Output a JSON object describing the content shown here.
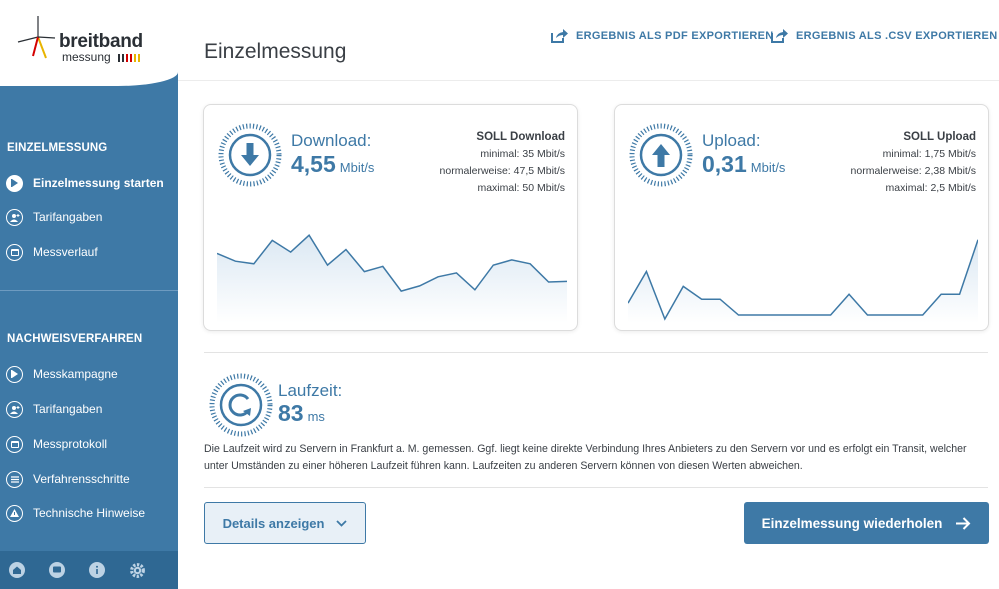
{
  "logo": {
    "word1": "breitband",
    "word2": "messung"
  },
  "sidebar": {
    "section1_title": "EINZELMESSUNG",
    "section1_items": [
      {
        "label": "Einzelmessung starten",
        "icon": "play-icon",
        "active": true
      },
      {
        "label": "Tarifangaben",
        "icon": "user-plus-icon",
        "active": false
      },
      {
        "label": "Messverlauf",
        "icon": "calendar-icon",
        "active": false
      }
    ],
    "section2_title": "NACHWEISVERFAHREN",
    "section2_items": [
      {
        "label": "Messkampagne",
        "icon": "play-icon"
      },
      {
        "label": "Tarifangaben",
        "icon": "user-plus-icon"
      },
      {
        "label": "Messprotokoll",
        "icon": "calendar-icon"
      },
      {
        "label": "Verfahrensschritte",
        "icon": "list-icon"
      },
      {
        "label": "Technische Hinweise",
        "icon": "warning-icon"
      }
    ],
    "bottom_icons": [
      "home-icon",
      "chat-icon",
      "info-icon",
      "gear-icon"
    ]
  },
  "header": {
    "title": "Einzelmessung",
    "export_pdf": "ERGEBNIS ALS PDF EXPORTIEREN",
    "export_csv": "ERGEBNIS ALS .CSV EXPORTIEREN"
  },
  "download": {
    "label": "Download:",
    "value": "4,55",
    "unit": "Mbit/s",
    "soll_title": "SOLL Download",
    "soll_min": "minimal: 35 Mbit/s",
    "soll_normal": "normalerweise: 47,5 Mbit/s",
    "soll_max": "maximal: 50 Mbit/s",
    "series": [
      5.2,
      4.6,
      4.4,
      6.2,
      5.3,
      6.6,
      4.3,
      5.5,
      3.8,
      4.2,
      2.3,
      2.7,
      3.4,
      3.7,
      2.4,
      4.3,
      4.7,
      4.4,
      3.0,
      3.05
    ]
  },
  "upload": {
    "label": "Upload:",
    "value": "0,31",
    "unit": "Mbit/s",
    "soll_title": "SOLL Upload",
    "soll_min": "minimal: 1,75 Mbit/s",
    "soll_normal": "normalerweise: 2,38 Mbit/s",
    "soll_max": "maximal: 2,5 Mbit/s",
    "series": [
      0.18,
      0.5,
      0.02,
      0.35,
      0.22,
      0.22,
      0.06,
      0.06,
      0.06,
      0.06,
      0.06,
      0.06,
      0.27,
      0.06,
      0.06,
      0.06,
      0.06,
      0.27,
      0.27,
      0.82
    ]
  },
  "latency": {
    "label": "Laufzeit:",
    "value": "83",
    "unit": "ms",
    "description": "Die Laufzeit wird zu Servern in Frankfurt a. M. gemessen. Ggf. liegt keine direkte Verbindung Ihres Anbieters zu den Servern vor und es erfolgt ein Transit, welcher unter Umständen zu einer höheren Laufzeit führen kann. Laufzeiten zu anderen Servern können von diesen Werten abweichen."
  },
  "buttons": {
    "details": "Details anzeigen",
    "repeat": "Einzelmessung wiederholen"
  },
  "colors": {
    "primary": "#3e79a6",
    "sidebar": "#3e79a6",
    "chart_fill": "#e6eff7"
  }
}
